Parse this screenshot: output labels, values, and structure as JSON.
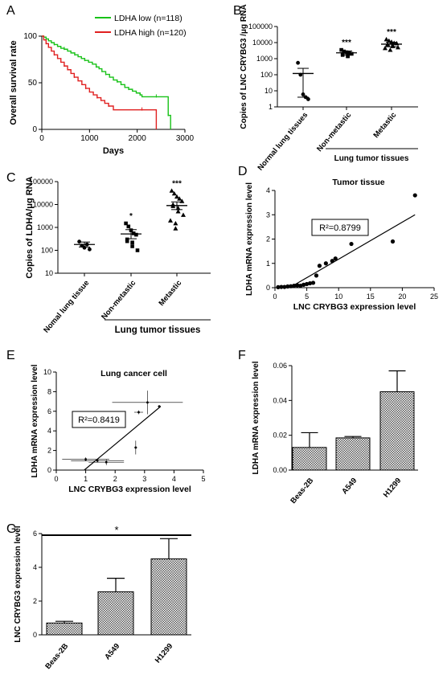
{
  "chart_data": [
    {
      "panel": "A",
      "type": "line",
      "xlabel": "Days",
      "ylabel": "Overall survival rate",
      "xlim": [
        0,
        3000
      ],
      "ylim": [
        0,
        100
      ],
      "xticks": [
        0,
        1000,
        2000,
        3000
      ],
      "yticks": [
        0,
        50,
        100
      ],
      "series": [
        {
          "name": "LDHA low (n=118)",
          "color": "#18c218",
          "x": [
            0,
            40,
            90,
            140,
            200,
            260,
            330,
            400,
            470,
            540,
            610,
            690,
            760,
            830,
            900,
            980,
            1060,
            1140,
            1200,
            1260,
            1340,
            1420,
            1500,
            1580,
            1660,
            1740,
            1820,
            1900,
            1980,
            2060,
            2100,
            2200,
            2400,
            2600,
            2650,
            2650,
            2700
          ],
          "y": [
            100,
            99,
            97,
            95,
            93,
            91,
            89,
            87,
            86,
            84,
            82,
            80,
            78,
            76,
            74,
            72,
            70,
            67,
            65,
            62,
            59,
            56,
            53,
            51,
            48,
            45,
            43,
            41,
            39,
            37,
            35,
            35,
            35,
            35,
            35,
            15,
            0
          ]
        },
        {
          "name": "LDHA high (n=120)",
          "color": "#e02020",
          "x": [
            0,
            40,
            90,
            140,
            200,
            260,
            330,
            400,
            470,
            540,
            610,
            680,
            760,
            840,
            920,
            1000,
            1080,
            1160,
            1240,
            1320,
            1400,
            1500,
            1800,
            2100,
            2400,
            2400
          ],
          "y": [
            100,
            96,
            92,
            88,
            84,
            80,
            76,
            72,
            68,
            64,
            60,
            56,
            52,
            48,
            44,
            40,
            37,
            34,
            31,
            28,
            25,
            21,
            21,
            21,
            21,
            0
          ]
        }
      ]
    },
    {
      "panel": "B",
      "type": "scatter",
      "ylabel": "Copies of LNC CRYBG3 /μg RNA",
      "yscale": "log",
      "yticks": [
        1,
        10,
        100,
        1000,
        10000,
        100000
      ],
      "ytick_labels": [
        "1",
        "10",
        "100",
        "1000",
        "10000",
        "100000"
      ],
      "categories": [
        "Normal lung tissues",
        "Non-metastic",
        "Metastic"
      ],
      "group_label": "Lung tumor tissues",
      "significance": [
        "",
        "***",
        "***"
      ],
      "points": [
        [
          550,
          100,
          6,
          4,
          3
        ],
        [
          3500,
          2800,
          2500,
          2200,
          2000,
          1900,
          1700,
          1500,
          1400
        ],
        [
          16000,
          13000,
          11000,
          9500,
          9000,
          8000,
          7500,
          6500,
          6000,
          5000,
          4500,
          3500
        ]
      ],
      "mean": [
        120,
        2300,
        8000
      ],
      "err_low": [
        4,
        1700,
        5500
      ],
      "err_high": [
        250,
        3000,
        10500
      ]
    },
    {
      "panel": "C",
      "type": "scatter",
      "ylabel": "Copies of LDHA/μg RNA",
      "yscale": "log",
      "yticks": [
        10,
        100,
        1000,
        10000,
        100000
      ],
      "ytick_labels": [
        "10",
        "100",
        "1000",
        "10000",
        "100000"
      ],
      "categories": [
        "Nomal lung tissue",
        "Non-metastic",
        "Metastic"
      ],
      "group_label": "Lung tumor tissues",
      "significance": [
        "",
        "*",
        "***"
      ],
      "points": [
        [
          240,
          160,
          130,
          180,
          110
        ],
        [
          1500,
          1100,
          750,
          550,
          480,
          300,
          250,
          220,
          150,
          100
        ],
        [
          40000,
          30000,
          22000,
          18000,
          14000,
          10000,
          8500,
          7000,
          5000,
          3500,
          2000,
          1500,
          900
        ]
      ],
      "mean": [
        180,
        520,
        9000
      ],
      "err_low": [
        140,
        320,
        6000
      ],
      "err_high": [
        230,
        800,
        13000
      ]
    },
    {
      "panel": "D",
      "type": "scatter",
      "title": "Tumor tissue",
      "xlabel": "LNC CRYBG3 expression level",
      "ylabel": "LDHA mRNA expression level",
      "xlim": [
        0,
        25
      ],
      "ylim": [
        0,
        4
      ],
      "xticks": [
        0,
        5,
        10,
        15,
        20,
        25
      ],
      "yticks": [
        0,
        1,
        2,
        3,
        4
      ],
      "annotation": "R²=0.8799",
      "x": [
        0.5,
        1,
        1.5,
        2,
        2.5,
        3,
        3.5,
        4,
        4.5,
        5,
        5.5,
        6,
        6.5,
        7,
        8,
        9,
        9.5,
        12,
        18.5,
        22
      ],
      "y": [
        0.02,
        0.03,
        0.03,
        0.05,
        0.06,
        0.08,
        0.1,
        0.08,
        0.12,
        0.15,
        0.18,
        0.2,
        0.5,
        0.9,
        1.0,
        1.1,
        1.2,
        1.8,
        1.9,
        3.8
      ],
      "fit": {
        "x": [
          2.3,
          22
        ],
        "y": [
          0,
          3.0
        ]
      }
    },
    {
      "panel": "E",
      "type": "scatter",
      "title": "Lung cancer cell",
      "xlabel": "LNC CRYBG3 expression level",
      "ylabel": "LDHA mRNA expression level",
      "xlim": [
        0,
        5
      ],
      "ylim": [
        0,
        10
      ],
      "xticks": [
        0,
        1,
        2,
        3,
        4,
        5
      ],
      "yticks": [
        0,
        2,
        4,
        6,
        8,
        10
      ],
      "annotation": "R²=0.8419",
      "x": [
        1.0,
        1.4,
        1.7,
        2.7,
        2.8,
        3.1,
        3.5
      ],
      "y": [
        1.1,
        0.95,
        0.8,
        2.3,
        5.9,
        6.9,
        6.5
      ],
      "xerr": [
        0.8,
        0.9,
        0.6,
        0.05,
        0.15,
        1.2,
        0.05
      ],
      "yerr": [
        0.2,
        0.15,
        0.3,
        0.7,
        0.2,
        1.2,
        0.1
      ],
      "fit": {
        "x": [
          0.95,
          3.55
        ],
        "y": [
          0,
          6.5
        ]
      }
    },
    {
      "panel": "F",
      "type": "bar",
      "ylabel": "LDHA mRNA expression level",
      "categories": [
        "Beas-2B",
        "A549",
        "H1299"
      ],
      "values": [
        0.013,
        0.0185,
        0.045
      ],
      "errors": [
        0.0085,
        0.0008,
        0.012
      ],
      "ylim": [
        0,
        0.06
      ],
      "yticks": [
        0,
        0.02,
        0.04,
        0.06
      ],
      "ytick_labels": [
        "0.00",
        "0.02",
        "0.04",
        "0.06"
      ]
    },
    {
      "panel": "G",
      "type": "bar",
      "ylabel": "LNC CRYBG3 expression level",
      "categories": [
        "Beas-2B",
        "A549",
        "H1299"
      ],
      "values": [
        0.7,
        2.55,
        4.5
      ],
      "errors": [
        0.1,
        0.8,
        1.2
      ],
      "ylim": [
        0,
        6
      ],
      "yticks": [
        0,
        2,
        4,
        6
      ],
      "ytick_labels": [
        "0",
        "2",
        "4",
        "6"
      ],
      "significance": "*"
    }
  ]
}
